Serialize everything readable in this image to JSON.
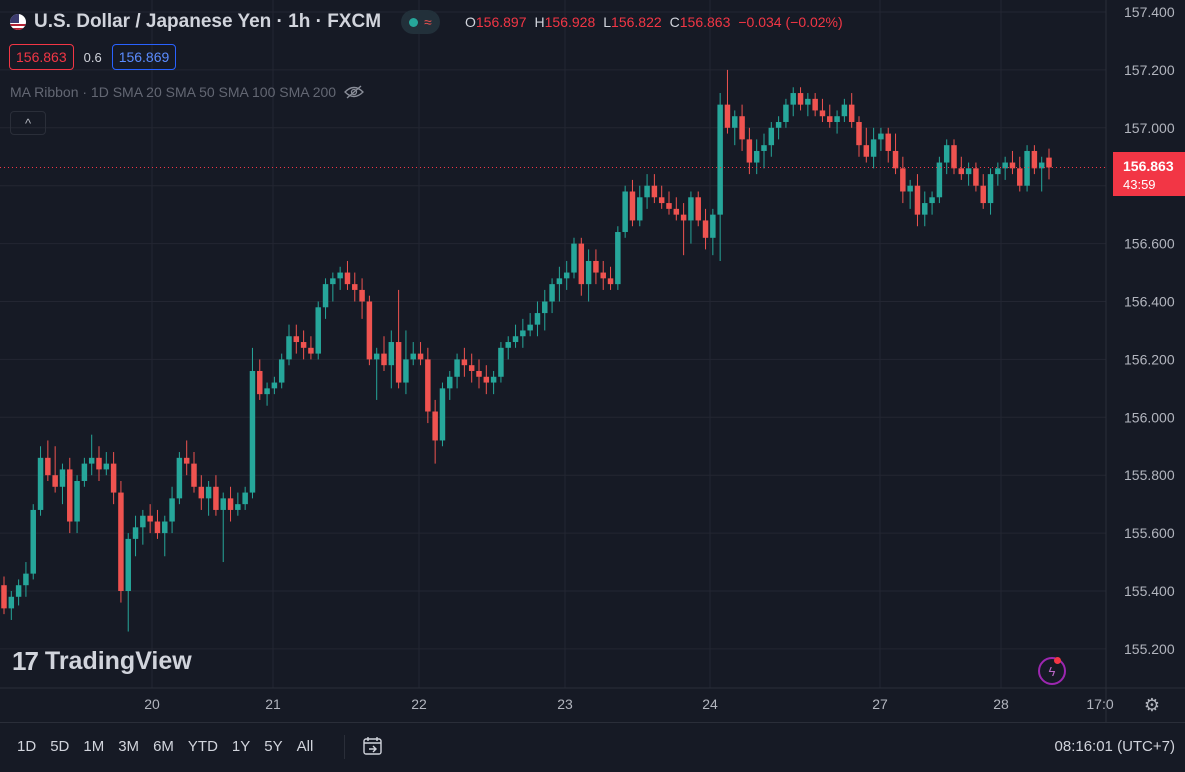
{
  "header": {
    "symbol_title": "U.S. Dollar / Japanese Yen · 1h · FXCM",
    "status_wave": "≈",
    "ohlc": {
      "o_label": "O",
      "o": "156.897",
      "h_label": "H",
      "h": "156.928",
      "l_label": "L",
      "l": "156.822",
      "c_label": "C",
      "c": "156.863",
      "change": "−0.034 (−0.02%)"
    }
  },
  "quotes": {
    "sell": "156.863",
    "spread": "0.6",
    "buy": "156.869"
  },
  "indicator": {
    "label": "MA Ribbon · 1D SMA 20 SMA 50 SMA 100 SMA 200"
  },
  "collapse_icon": "^",
  "logo": {
    "text": "TradingView",
    "mark": "17"
  },
  "last_price": {
    "price": "156.863",
    "countdown": "43:59"
  },
  "bottom_bar": {
    "ranges": [
      "1D",
      "5D",
      "1M",
      "3M",
      "6M",
      "YTD",
      "1Y",
      "5Y",
      "All"
    ],
    "clock": "08:16:01 (UTC+7)"
  },
  "icons": [
    "usd-flag-icon",
    "eye-off-icon",
    "chevron-up-icon",
    "bolt-icon",
    "gear-icon",
    "calendar-range-icon"
  ],
  "colors": {
    "up": "#26a69a",
    "down": "#ef5350",
    "background": "#161a25",
    "grid": "#232632",
    "last_price": "#f23645"
  },
  "chart_data": {
    "type": "candlestick",
    "title": "U.S. Dollar / Japanese Yen · 1h · FXCM",
    "y_ticks": [
      "157.400",
      "157.200",
      "157.000",
      "156.800",
      "156.600",
      "156.400",
      "156.200",
      "156.000",
      "155.800",
      "155.600",
      "155.400",
      "155.200"
    ],
    "x_ticks": [
      "20",
      "21",
      "22",
      "23",
      "24",
      "27",
      "28",
      "17:0"
    ],
    "ylim": [
      155.12,
      157.42
    ],
    "last_price": 156.863,
    "grid": true,
    "candles": [
      {
        "o": 155.42,
        "h": 155.45,
        "l": 155.32,
        "c": 155.34
      },
      {
        "o": 155.34,
        "h": 155.4,
        "l": 155.3,
        "c": 155.38
      },
      {
        "o": 155.38,
        "h": 155.44,
        "l": 155.35,
        "c": 155.42
      },
      {
        "o": 155.42,
        "h": 155.5,
        "l": 155.38,
        "c": 155.46
      },
      {
        "o": 155.46,
        "h": 155.7,
        "l": 155.44,
        "c": 155.68
      },
      {
        "o": 155.68,
        "h": 155.9,
        "l": 155.66,
        "c": 155.86
      },
      {
        "o": 155.86,
        "h": 155.92,
        "l": 155.78,
        "c": 155.8
      },
      {
        "o": 155.8,
        "h": 155.9,
        "l": 155.74,
        "c": 155.76
      },
      {
        "o": 155.76,
        "h": 155.84,
        "l": 155.7,
        "c": 155.82
      },
      {
        "o": 155.82,
        "h": 155.86,
        "l": 155.6,
        "c": 155.64
      },
      {
        "o": 155.64,
        "h": 155.8,
        "l": 155.6,
        "c": 155.78
      },
      {
        "o": 155.78,
        "h": 155.86,
        "l": 155.76,
        "c": 155.84
      },
      {
        "o": 155.84,
        "h": 155.94,
        "l": 155.8,
        "c": 155.86
      },
      {
        "o": 155.86,
        "h": 155.9,
        "l": 155.78,
        "c": 155.82
      },
      {
        "o": 155.82,
        "h": 155.88,
        "l": 155.8,
        "c": 155.84
      },
      {
        "o": 155.84,
        "h": 155.88,
        "l": 155.7,
        "c": 155.74
      },
      {
        "o": 155.74,
        "h": 155.78,
        "l": 155.36,
        "c": 155.4
      },
      {
        "o": 155.4,
        "h": 155.6,
        "l": 155.26,
        "c": 155.58
      },
      {
        "o": 155.58,
        "h": 155.66,
        "l": 155.52,
        "c": 155.62
      },
      {
        "o": 155.62,
        "h": 155.68,
        "l": 155.56,
        "c": 155.66
      },
      {
        "o": 155.66,
        "h": 155.7,
        "l": 155.6,
        "c": 155.64
      },
      {
        "o": 155.64,
        "h": 155.68,
        "l": 155.58,
        "c": 155.6
      },
      {
        "o": 155.6,
        "h": 155.66,
        "l": 155.52,
        "c": 155.64
      },
      {
        "o": 155.64,
        "h": 155.76,
        "l": 155.6,
        "c": 155.72
      },
      {
        "o": 155.72,
        "h": 155.88,
        "l": 155.7,
        "c": 155.86
      },
      {
        "o": 155.86,
        "h": 155.92,
        "l": 155.8,
        "c": 155.84
      },
      {
        "o": 155.84,
        "h": 155.88,
        "l": 155.74,
        "c": 155.76
      },
      {
        "o": 155.76,
        "h": 155.8,
        "l": 155.68,
        "c": 155.72
      },
      {
        "o": 155.72,
        "h": 155.78,
        "l": 155.66,
        "c": 155.76
      },
      {
        "o": 155.76,
        "h": 155.8,
        "l": 155.66,
        "c": 155.68
      },
      {
        "o": 155.68,
        "h": 155.74,
        "l": 155.5,
        "c": 155.72
      },
      {
        "o": 155.72,
        "h": 155.76,
        "l": 155.64,
        "c": 155.68
      },
      {
        "o": 155.68,
        "h": 155.74,
        "l": 155.66,
        "c": 155.7
      },
      {
        "o": 155.7,
        "h": 155.76,
        "l": 155.68,
        "c": 155.74
      },
      {
        "o": 155.74,
        "h": 156.24,
        "l": 155.72,
        "c": 156.16
      },
      {
        "o": 156.16,
        "h": 156.2,
        "l": 156.06,
        "c": 156.08
      },
      {
        "o": 156.08,
        "h": 156.12,
        "l": 156.04,
        "c": 156.1
      },
      {
        "o": 156.1,
        "h": 156.14,
        "l": 156.08,
        "c": 156.12
      },
      {
        "o": 156.12,
        "h": 156.22,
        "l": 156.1,
        "c": 156.2
      },
      {
        "o": 156.2,
        "h": 156.32,
        "l": 156.18,
        "c": 156.28
      },
      {
        "o": 156.28,
        "h": 156.32,
        "l": 156.22,
        "c": 156.26
      },
      {
        "o": 156.26,
        "h": 156.3,
        "l": 156.2,
        "c": 156.24
      },
      {
        "o": 156.24,
        "h": 156.28,
        "l": 156.2,
        "c": 156.22
      },
      {
        "o": 156.22,
        "h": 156.4,
        "l": 156.2,
        "c": 156.38
      },
      {
        "o": 156.38,
        "h": 156.48,
        "l": 156.34,
        "c": 156.46
      },
      {
        "o": 156.46,
        "h": 156.5,
        "l": 156.4,
        "c": 156.48
      },
      {
        "o": 156.48,
        "h": 156.52,
        "l": 156.44,
        "c": 156.5
      },
      {
        "o": 156.5,
        "h": 156.54,
        "l": 156.44,
        "c": 156.46
      },
      {
        "o": 156.46,
        "h": 156.5,
        "l": 156.4,
        "c": 156.44
      },
      {
        "o": 156.44,
        "h": 156.48,
        "l": 156.34,
        "c": 156.4
      },
      {
        "o": 156.4,
        "h": 156.42,
        "l": 156.18,
        "c": 156.2
      },
      {
        "o": 156.2,
        "h": 156.24,
        "l": 156.06,
        "c": 156.22
      },
      {
        "o": 156.22,
        "h": 156.28,
        "l": 156.16,
        "c": 156.18
      },
      {
        "o": 156.18,
        "h": 156.3,
        "l": 156.1,
        "c": 156.26
      },
      {
        "o": 156.26,
        "h": 156.44,
        "l": 156.1,
        "c": 156.12
      },
      {
        "o": 156.12,
        "h": 156.3,
        "l": 156.08,
        "c": 156.2
      },
      {
        "o": 156.2,
        "h": 156.26,
        "l": 156.18,
        "c": 156.22
      },
      {
        "o": 156.22,
        "h": 156.26,
        "l": 156.18,
        "c": 156.2
      },
      {
        "o": 156.2,
        "h": 156.24,
        "l": 155.98,
        "c": 156.02
      },
      {
        "o": 156.02,
        "h": 156.06,
        "l": 155.84,
        "c": 155.92
      },
      {
        "o": 155.92,
        "h": 156.12,
        "l": 155.9,
        "c": 156.1
      },
      {
        "o": 156.1,
        "h": 156.16,
        "l": 156.06,
        "c": 156.14
      },
      {
        "o": 156.14,
        "h": 156.22,
        "l": 156.1,
        "c": 156.2
      },
      {
        "o": 156.2,
        "h": 156.24,
        "l": 156.14,
        "c": 156.18
      },
      {
        "o": 156.18,
        "h": 156.22,
        "l": 156.12,
        "c": 156.16
      },
      {
        "o": 156.16,
        "h": 156.2,
        "l": 156.1,
        "c": 156.14
      },
      {
        "o": 156.14,
        "h": 156.18,
        "l": 156.08,
        "c": 156.12
      },
      {
        "o": 156.12,
        "h": 156.16,
        "l": 156.08,
        "c": 156.14
      },
      {
        "o": 156.14,
        "h": 156.26,
        "l": 156.12,
        "c": 156.24
      },
      {
        "o": 156.24,
        "h": 156.28,
        "l": 156.2,
        "c": 156.26
      },
      {
        "o": 156.26,
        "h": 156.32,
        "l": 156.24,
        "c": 156.28
      },
      {
        "o": 156.28,
        "h": 156.34,
        "l": 156.24,
        "c": 156.3
      },
      {
        "o": 156.3,
        "h": 156.36,
        "l": 156.28,
        "c": 156.32
      },
      {
        "o": 156.32,
        "h": 156.4,
        "l": 156.28,
        "c": 156.36
      },
      {
        "o": 156.36,
        "h": 156.44,
        "l": 156.3,
        "c": 156.4
      },
      {
        "o": 156.4,
        "h": 156.48,
        "l": 156.36,
        "c": 156.46
      },
      {
        "o": 156.46,
        "h": 156.52,
        "l": 156.4,
        "c": 156.48
      },
      {
        "o": 156.48,
        "h": 156.54,
        "l": 156.44,
        "c": 156.5
      },
      {
        "o": 156.5,
        "h": 156.62,
        "l": 156.48,
        "c": 156.6
      },
      {
        "o": 156.6,
        "h": 156.62,
        "l": 156.42,
        "c": 156.46
      },
      {
        "o": 156.46,
        "h": 156.58,
        "l": 156.4,
        "c": 156.54
      },
      {
        "o": 156.54,
        "h": 156.58,
        "l": 156.46,
        "c": 156.5
      },
      {
        "o": 156.5,
        "h": 156.54,
        "l": 156.44,
        "c": 156.48
      },
      {
        "o": 156.48,
        "h": 156.52,
        "l": 156.44,
        "c": 156.46
      },
      {
        "o": 156.46,
        "h": 156.66,
        "l": 156.44,
        "c": 156.64
      },
      {
        "o": 156.64,
        "h": 156.8,
        "l": 156.62,
        "c": 156.78
      },
      {
        "o": 156.78,
        "h": 156.82,
        "l": 156.66,
        "c": 156.68
      },
      {
        "o": 156.68,
        "h": 156.8,
        "l": 156.66,
        "c": 156.76
      },
      {
        "o": 156.76,
        "h": 156.84,
        "l": 156.72,
        "c": 156.8
      },
      {
        "o": 156.8,
        "h": 156.84,
        "l": 156.74,
        "c": 156.76
      },
      {
        "o": 156.76,
        "h": 156.8,
        "l": 156.72,
        "c": 156.74
      },
      {
        "o": 156.74,
        "h": 156.78,
        "l": 156.7,
        "c": 156.72
      },
      {
        "o": 156.72,
        "h": 156.76,
        "l": 156.68,
        "c": 156.7
      },
      {
        "o": 156.7,
        "h": 156.74,
        "l": 156.56,
        "c": 156.68
      },
      {
        "o": 156.68,
        "h": 156.78,
        "l": 156.6,
        "c": 156.76
      },
      {
        "o": 156.76,
        "h": 156.78,
        "l": 156.66,
        "c": 156.68
      },
      {
        "o": 156.68,
        "h": 156.72,
        "l": 156.58,
        "c": 156.62
      },
      {
        "o": 156.62,
        "h": 156.72,
        "l": 156.56,
        "c": 156.7
      },
      {
        "o": 156.7,
        "h": 157.12,
        "l": 156.54,
        "c": 157.08
      },
      {
        "o": 157.08,
        "h": 157.2,
        "l": 156.98,
        "c": 157.0
      },
      {
        "o": 157.0,
        "h": 157.06,
        "l": 156.94,
        "c": 157.04
      },
      {
        "o": 157.04,
        "h": 157.08,
        "l": 156.92,
        "c": 156.96
      },
      {
        "o": 156.96,
        "h": 157.0,
        "l": 156.84,
        "c": 156.88
      },
      {
        "o": 156.88,
        "h": 156.96,
        "l": 156.84,
        "c": 156.92
      },
      {
        "o": 156.92,
        "h": 156.98,
        "l": 156.86,
        "c": 156.94
      },
      {
        "o": 156.94,
        "h": 157.02,
        "l": 156.9,
        "c": 157.0
      },
      {
        "o": 157.0,
        "h": 157.04,
        "l": 156.96,
        "c": 157.02
      },
      {
        "o": 157.02,
        "h": 157.1,
        "l": 157.0,
        "c": 157.08
      },
      {
        "o": 157.08,
        "h": 157.14,
        "l": 157.04,
        "c": 157.12
      },
      {
        "o": 157.12,
        "h": 157.14,
        "l": 157.06,
        "c": 157.08
      },
      {
        "o": 157.08,
        "h": 157.12,
        "l": 157.04,
        "c": 157.1
      },
      {
        "o": 157.1,
        "h": 157.12,
        "l": 157.04,
        "c": 157.06
      },
      {
        "o": 157.06,
        "h": 157.1,
        "l": 157.02,
        "c": 157.04
      },
      {
        "o": 157.04,
        "h": 157.08,
        "l": 157.0,
        "c": 157.02
      },
      {
        "o": 157.02,
        "h": 157.06,
        "l": 156.98,
        "c": 157.04
      },
      {
        "o": 157.04,
        "h": 157.1,
        "l": 157.02,
        "c": 157.08
      },
      {
        "o": 157.08,
        "h": 157.12,
        "l": 157.0,
        "c": 157.02
      },
      {
        "o": 157.02,
        "h": 157.04,
        "l": 156.9,
        "c": 156.94
      },
      {
        "o": 156.94,
        "h": 157.0,
        "l": 156.88,
        "c": 156.9
      },
      {
        "o": 156.9,
        "h": 157.0,
        "l": 156.86,
        "c": 156.96
      },
      {
        "o": 156.96,
        "h": 157.0,
        "l": 156.92,
        "c": 156.98
      },
      {
        "o": 156.98,
        "h": 157.0,
        "l": 156.88,
        "c": 156.92
      },
      {
        "o": 156.92,
        "h": 156.98,
        "l": 156.84,
        "c": 156.86
      },
      {
        "o": 156.86,
        "h": 156.9,
        "l": 156.74,
        "c": 156.78
      },
      {
        "o": 156.78,
        "h": 156.82,
        "l": 156.72,
        "c": 156.8
      },
      {
        "o": 156.8,
        "h": 156.84,
        "l": 156.66,
        "c": 156.7
      },
      {
        "o": 156.7,
        "h": 156.78,
        "l": 156.66,
        "c": 156.74
      },
      {
        "o": 156.74,
        "h": 156.78,
        "l": 156.7,
        "c": 156.76
      },
      {
        "o": 156.76,
        "h": 156.9,
        "l": 156.74,
        "c": 156.88
      },
      {
        "o": 156.88,
        "h": 156.96,
        "l": 156.84,
        "c": 156.94
      },
      {
        "o": 156.94,
        "h": 156.96,
        "l": 156.84,
        "c": 156.86
      },
      {
        "o": 156.86,
        "h": 156.9,
        "l": 156.82,
        "c": 156.84
      },
      {
        "o": 156.84,
        "h": 156.88,
        "l": 156.8,
        "c": 156.86
      },
      {
        "o": 156.86,
        "h": 156.88,
        "l": 156.78,
        "c": 156.8
      },
      {
        "o": 156.8,
        "h": 156.84,
        "l": 156.72,
        "c": 156.74
      },
      {
        "o": 156.74,
        "h": 156.86,
        "l": 156.7,
        "c": 156.84
      },
      {
        "o": 156.84,
        "h": 156.88,
        "l": 156.8,
        "c": 156.86
      },
      {
        "o": 156.86,
        "h": 156.9,
        "l": 156.82,
        "c": 156.88
      },
      {
        "o": 156.88,
        "h": 156.92,
        "l": 156.84,
        "c": 156.86
      },
      {
        "o": 156.86,
        "h": 156.9,
        "l": 156.78,
        "c": 156.8
      },
      {
        "o": 156.8,
        "h": 156.94,
        "l": 156.78,
        "c": 156.92
      },
      {
        "o": 156.92,
        "h": 156.94,
        "l": 156.84,
        "c": 156.86
      },
      {
        "o": 156.86,
        "h": 156.9,
        "l": 156.78,
        "c": 156.88
      },
      {
        "o": 156.897,
        "h": 156.928,
        "l": 156.822,
        "c": 156.863
      }
    ]
  }
}
